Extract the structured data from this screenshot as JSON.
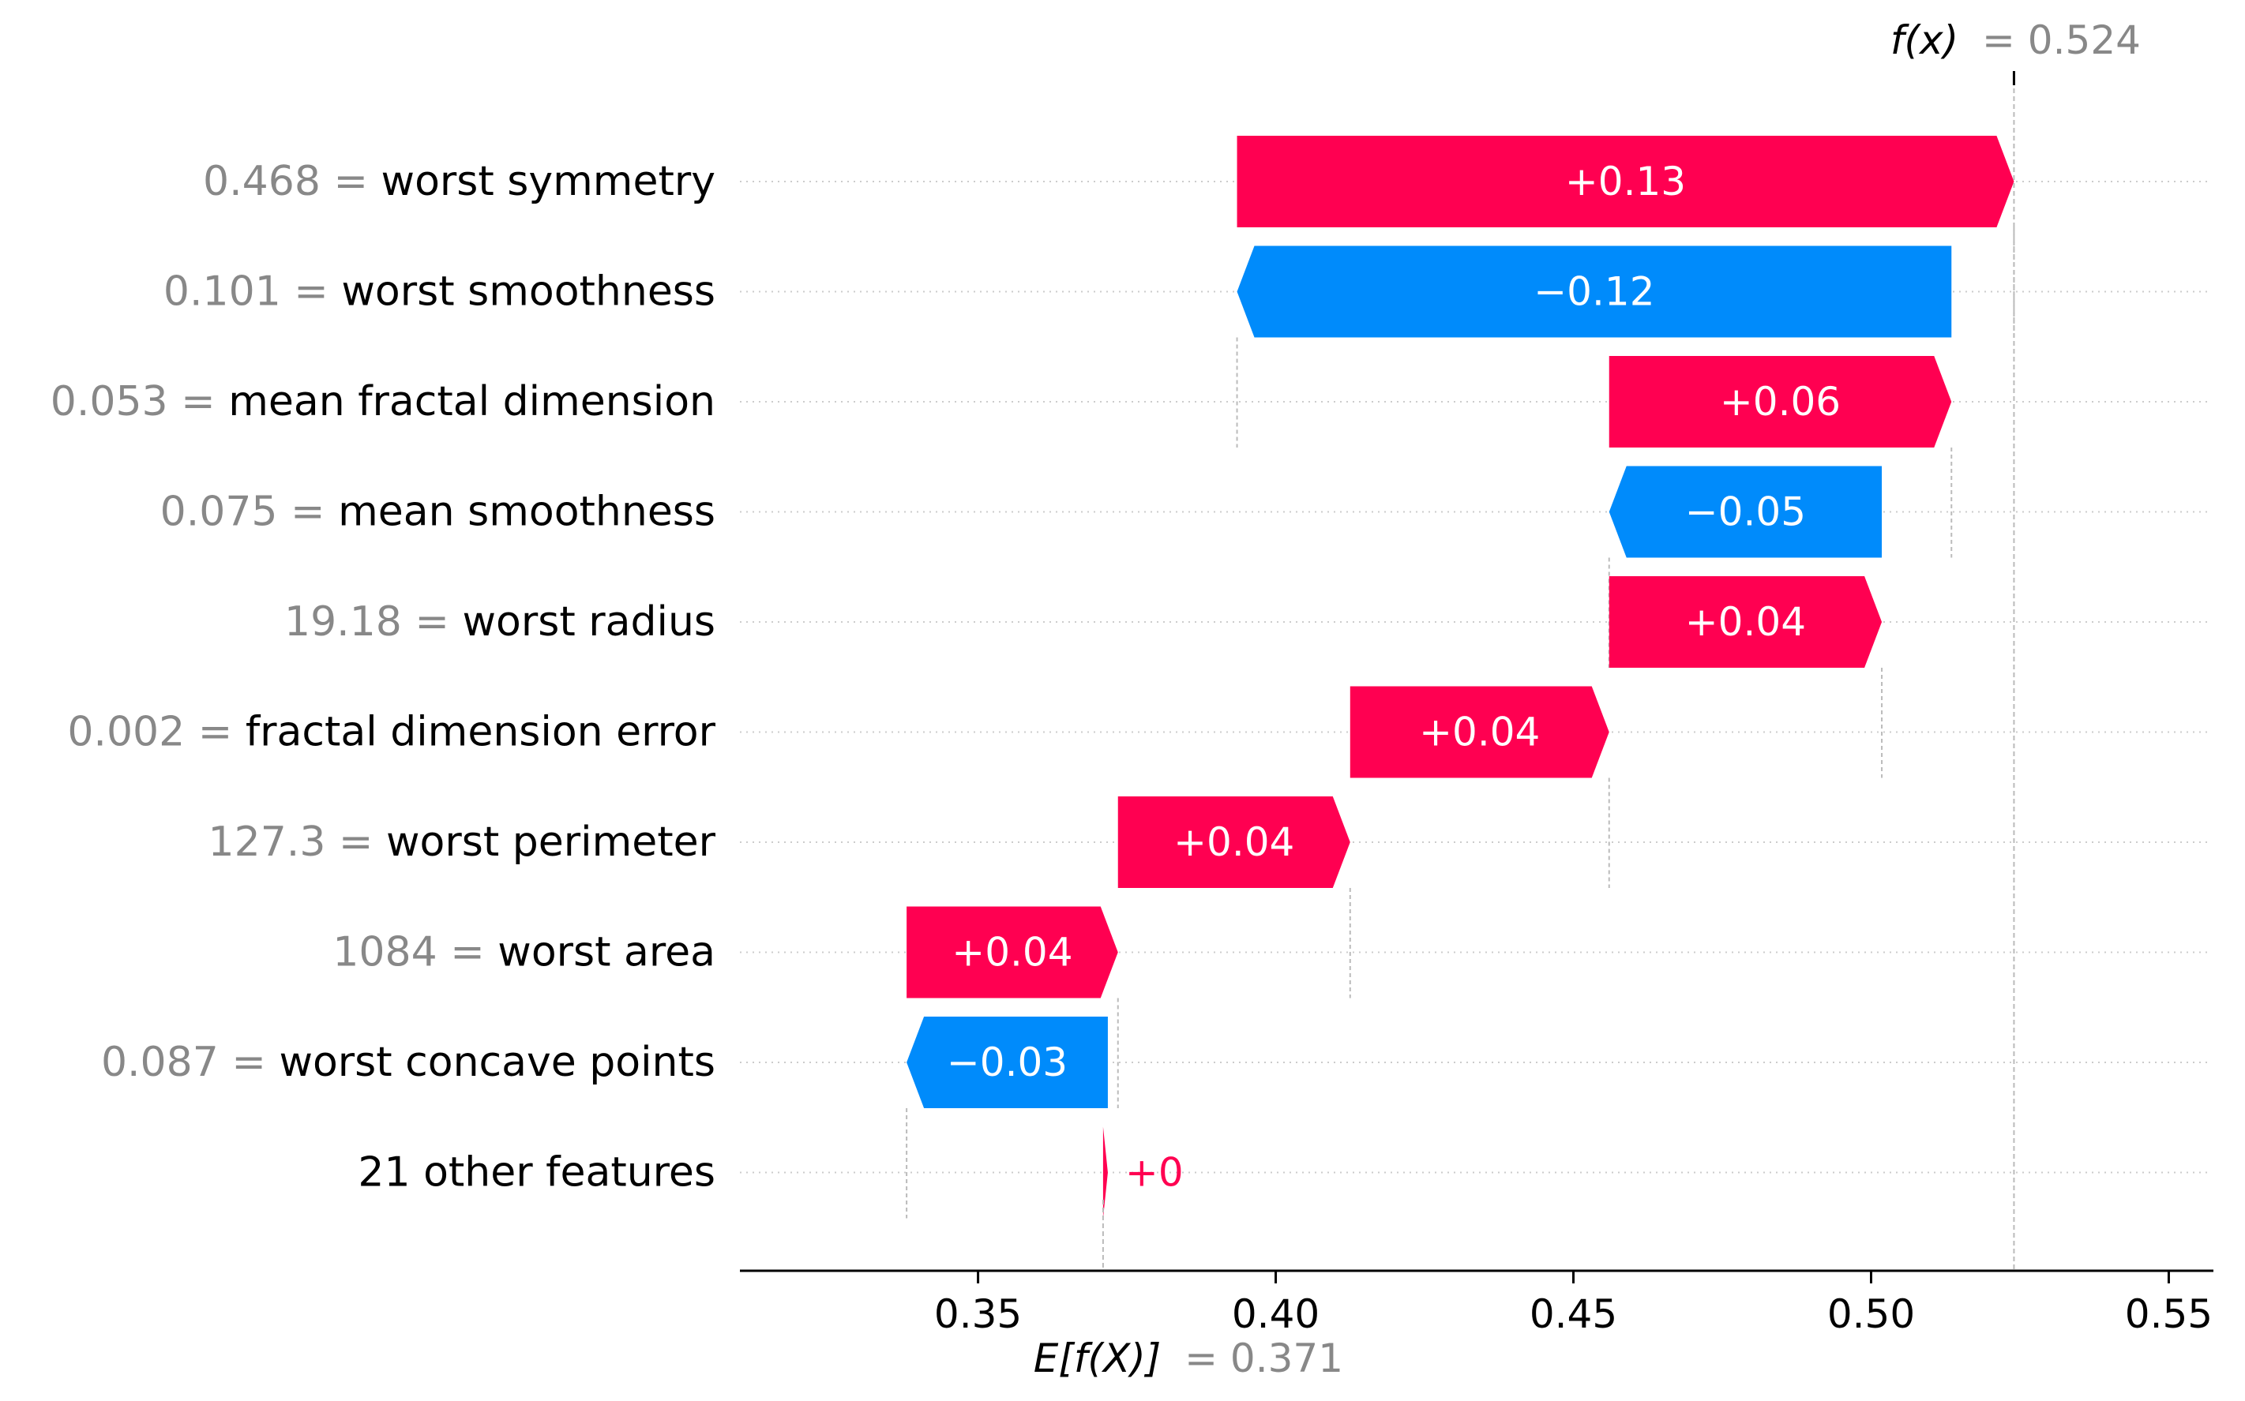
{
  "chart_data": {
    "type": "waterfall",
    "base_value": 0.371,
    "base_label_text": "E[f(X)]",
    "base_value_text": "= 0.371",
    "output_value": 0.524,
    "output_label_text": "f(x)",
    "output_value_text": "= 0.524",
    "x_range": [
      0.31,
      0.5575
    ],
    "x_ticks": [
      0.35,
      0.4,
      0.45,
      0.5,
      0.55
    ],
    "x_tick_labels": [
      "0.35",
      "0.40",
      "0.45",
      "0.50",
      "0.55"
    ],
    "colors": {
      "positive": "#ff0051",
      "negative": "#008bfb",
      "feature_value": "#888888",
      "feature_name": "#000000",
      "grid": "#cccccc"
    },
    "features": [
      {
        "value_text": "0.468 =",
        "name": "worst symmetry",
        "start": 0.3935,
        "end": 0.524,
        "label": "+0.13"
      },
      {
        "value_text": "0.101 =",
        "name": "worst smoothness",
        "start": 0.5135,
        "end": 0.3935,
        "label": "−0.12"
      },
      {
        "value_text": "0.053 =",
        "name": "mean fractal dimension",
        "start": 0.456,
        "end": 0.5135,
        "label": "+0.06"
      },
      {
        "value_text": "0.075 =",
        "name": "mean smoothness",
        "start": 0.5018,
        "end": 0.456,
        "label": "−0.05"
      },
      {
        "value_text": "19.18 =",
        "name": "worst radius",
        "start": 0.456,
        "end": 0.5018,
        "label": "+0.04"
      },
      {
        "value_text": "0.002 =",
        "name": "fractal dimension error",
        "start": 0.4125,
        "end": 0.456,
        "label": "+0.04"
      },
      {
        "value_text": "127.3 =",
        "name": "worst perimeter",
        "start": 0.3735,
        "end": 0.4125,
        "label": "+0.04"
      },
      {
        "value_text": "1084 =",
        "name": "worst area",
        "start": 0.338,
        "end": 0.3735,
        "label": "+0.04"
      },
      {
        "value_text": "0.087 =",
        "name": "worst concave points",
        "start": 0.3718,
        "end": 0.338,
        "label": "−0.03"
      },
      {
        "value_text": "",
        "name": "21 other features",
        "start": 0.371,
        "end": 0.3718,
        "label": "+0"
      }
    ]
  }
}
